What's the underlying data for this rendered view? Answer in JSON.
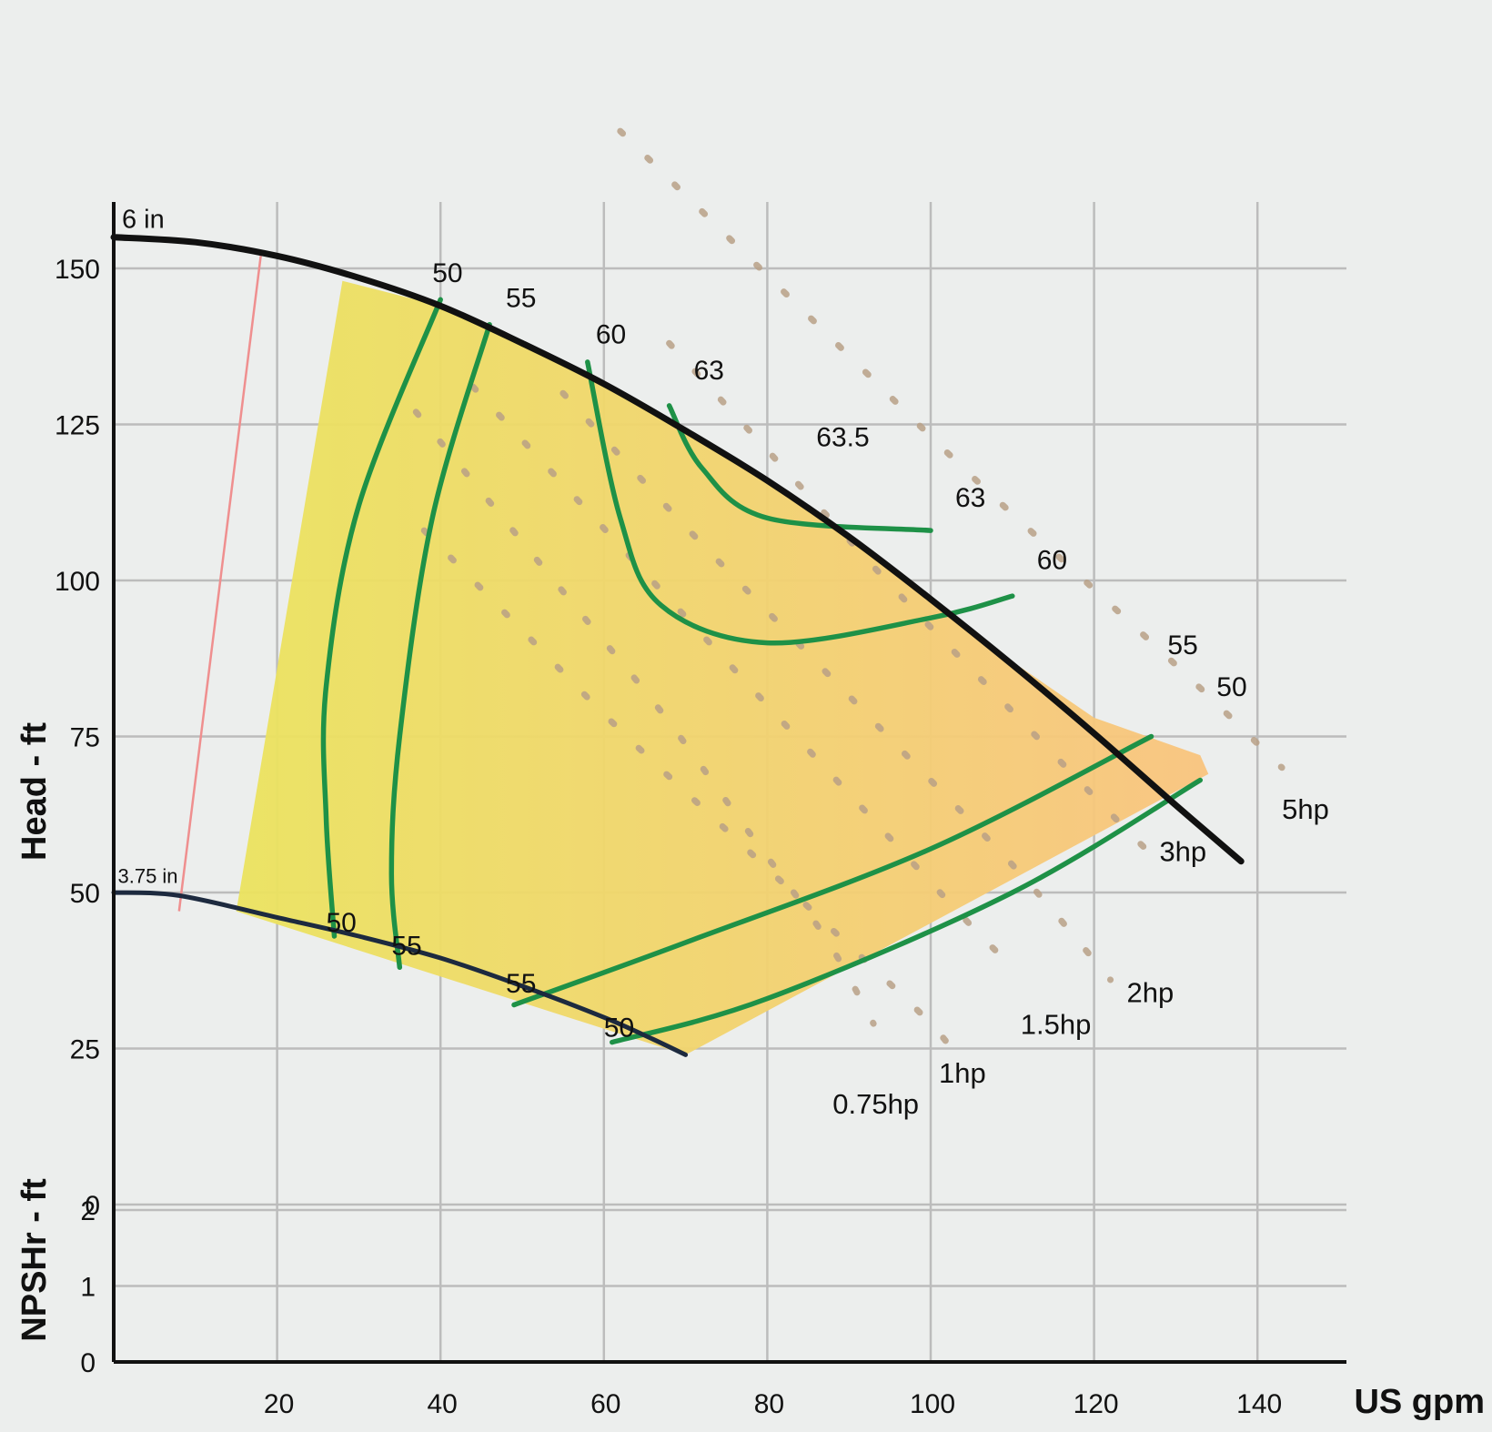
{
  "chart_data": {
    "type": "line",
    "title": "",
    "xlabel": "US gpm",
    "ylabel": "Head - ft",
    "ylabel2": "NPSHr - ft",
    "xlim": [
      0,
      145
    ],
    "ylim": [
      0,
      160
    ],
    "grid": true,
    "x_ticks": [
      "20",
      "40",
      "60",
      "80",
      "100",
      "120",
      "140"
    ],
    "head_ticks": [
      "150",
      "125",
      "100",
      "75",
      "50",
      "25",
      "0"
    ],
    "npshr_ticks": [
      "2",
      "1",
      "0"
    ],
    "colors": {
      "impeller_curve": "#111111",
      "min_impeller_curve": "#1d2a3f",
      "efficiency": "#1e9147",
      "horsepower": "#b8a086",
      "min_flow": "#ef8f8f",
      "region_low_flow": "#ebe35e",
      "region_high_flow": "#f9c47e"
    },
    "impeller_curves": [
      {
        "name": "6 in",
        "points": [
          [
            0,
            155
          ],
          [
            10,
            154.2
          ],
          [
            20,
            152
          ],
          [
            30,
            148.5
          ],
          [
            40,
            144
          ],
          [
            50,
            138
          ],
          [
            60,
            131.5
          ],
          [
            70,
            124
          ],
          [
            80,
            116
          ],
          [
            90,
            107
          ],
          [
            100,
            97
          ],
          [
            110,
            86.5
          ],
          [
            120,
            75.5
          ],
          [
            130,
            64
          ],
          [
            138,
            55
          ]
        ]
      },
      {
        "name": "3.75 in",
        "points": [
          [
            0,
            50
          ],
          [
            8,
            49.5
          ],
          [
            20,
            46
          ],
          [
            30,
            43
          ],
          [
            40,
            39.5
          ],
          [
            50,
            35
          ],
          [
            60,
            30
          ],
          [
            66,
            26.5
          ],
          [
            70,
            24
          ]
        ]
      }
    ],
    "min_flow_line": [
      [
        18,
        152
      ],
      [
        8,
        47
      ]
    ],
    "efficiency_curves": [
      {
        "label": "50",
        "side": "left",
        "points": [
          [
            40,
            145
          ],
          [
            30,
            112
          ],
          [
            26,
            83
          ],
          [
            26,
            62
          ],
          [
            27,
            43
          ]
        ]
      },
      {
        "label": "55",
        "side": "left",
        "points": [
          [
            46,
            141
          ],
          [
            39,
            110
          ],
          [
            35,
            75
          ],
          [
            34,
            53
          ],
          [
            35,
            38
          ]
        ]
      },
      {
        "label": "60",
        "side": "left",
        "points": [
          [
            58,
            135
          ],
          [
            62,
            110
          ],
          [
            67,
            96
          ],
          [
            80,
            90
          ],
          [
            100,
            94
          ],
          [
            110,
            97.5
          ]
        ]
      },
      {
        "label": "63",
        "side": "top",
        "points": [
          [
            68,
            128
          ],
          [
            72,
            118
          ],
          [
            80,
            110
          ],
          [
            100,
            108
          ]
        ]
      },
      {
        "label": "55",
        "side": "right",
        "points": [
          [
            49,
            32
          ],
          [
            70,
            42
          ],
          [
            100,
            57
          ],
          [
            127,
            75
          ]
        ]
      },
      {
        "label": "50",
        "side": "right",
        "points": [
          [
            61,
            26
          ],
          [
            80,
            33
          ],
          [
            110,
            50
          ],
          [
            133,
            68
          ]
        ]
      }
    ],
    "efficiency_annotations": [
      {
        "label": "50",
        "x": 39,
        "y": 147.8
      },
      {
        "label": "55",
        "x": 48,
        "y": 143.8
      },
      {
        "label": "60",
        "x": 59,
        "y": 138
      },
      {
        "label": "63",
        "x": 71,
        "y": 132.2
      },
      {
        "label": "63.5",
        "x": 86,
        "y": 121.5
      },
      {
        "label": "63",
        "x": 103,
        "y": 111.8
      },
      {
        "label": "60",
        "x": 113,
        "y": 101.8
      },
      {
        "label": "55",
        "x": 129,
        "y": 88.2
      },
      {
        "label": "50",
        "x": 135,
        "y": 81.5
      },
      {
        "label": "50",
        "x": 26,
        "y": 43.7
      },
      {
        "label": "55",
        "x": 34,
        "y": 40
      },
      {
        "label": "55",
        "x": 48,
        "y": 34
      },
      {
        "label": "50",
        "x": 60,
        "y": 26.9
      }
    ],
    "horsepower_lines": [
      {
        "label": "0.75hp",
        "points": [
          [
            37,
            127
          ],
          [
            47,
            111
          ],
          [
            57,
            95
          ],
          [
            67,
            79
          ],
          [
            77,
            61
          ],
          [
            87,
            43
          ],
          [
            93,
            29
          ]
        ]
      },
      {
        "label": "1hp",
        "points": [
          [
            38,
            108
          ],
          [
            50,
            92
          ],
          [
            62,
            76
          ],
          [
            75,
            60
          ],
          [
            88,
            44
          ],
          [
            100,
            29
          ],
          [
            104,
            22
          ]
        ]
      },
      {
        "label": "1.5hp",
        "points": [
          [
            44,
            131
          ],
          [
            56,
            114
          ],
          [
            68,
            97
          ],
          [
            80,
            80
          ],
          [
            92,
            63
          ],
          [
            104,
            46
          ],
          [
            110,
            38
          ]
        ]
      },
      {
        "label": "2hp",
        "points": [
          [
            55,
            130
          ],
          [
            69,
            110
          ],
          [
            83,
            91
          ],
          [
            97,
            72
          ],
          [
            111,
            53
          ],
          [
            122,
            36
          ]
        ]
      },
      {
        "label": "3hp",
        "points": [
          [
            68,
            138
          ],
          [
            82,
            118
          ],
          [
            96,
            98
          ],
          [
            110,
            79
          ],
          [
            124,
            60
          ],
          [
            128,
            55
          ]
        ]
      },
      {
        "label": "5hp",
        "points": [
          [
            62,
            172
          ],
          [
            76,
            154
          ],
          [
            90,
            136
          ],
          [
            104,
            118
          ],
          [
            118,
            101
          ],
          [
            132,
            84
          ],
          [
            143,
            70
          ]
        ]
      }
    ],
    "horsepower_annotations": [
      {
        "label": "0.75hp",
        "x": 88,
        "y": 14.6
      },
      {
        "label": "1hp",
        "x": 101,
        "y": 19.5
      },
      {
        "label": "1.5hp",
        "x": 111,
        "y": 27.3
      },
      {
        "label": "2hp",
        "x": 124,
        "y": 32.4
      },
      {
        "label": "3hp",
        "x": 128,
        "y": 55
      },
      {
        "label": "5hp",
        "x": 143,
        "y": 61.8
      }
    ],
    "diameter_annotations": [
      {
        "label": "6 in",
        "x": 1,
        "y": 156.5,
        "size": "large"
      },
      {
        "label": "3.75 in",
        "x": 0.5,
        "y": 51.5,
        "size": "small"
      }
    ],
    "operating_region": [
      [
        28,
        148
      ],
      [
        15,
        47
      ],
      [
        70,
        24
      ],
      [
        134,
        69
      ],
      [
        133,
        72
      ],
      [
        120,
        78
      ],
      [
        110,
        87
      ],
      [
        100,
        97
      ],
      [
        90,
        107
      ],
      [
        80,
        116
      ],
      [
        70,
        124
      ],
      [
        60,
        131.5
      ],
      [
        50,
        138
      ],
      [
        40,
        144
      ]
    ]
  }
}
